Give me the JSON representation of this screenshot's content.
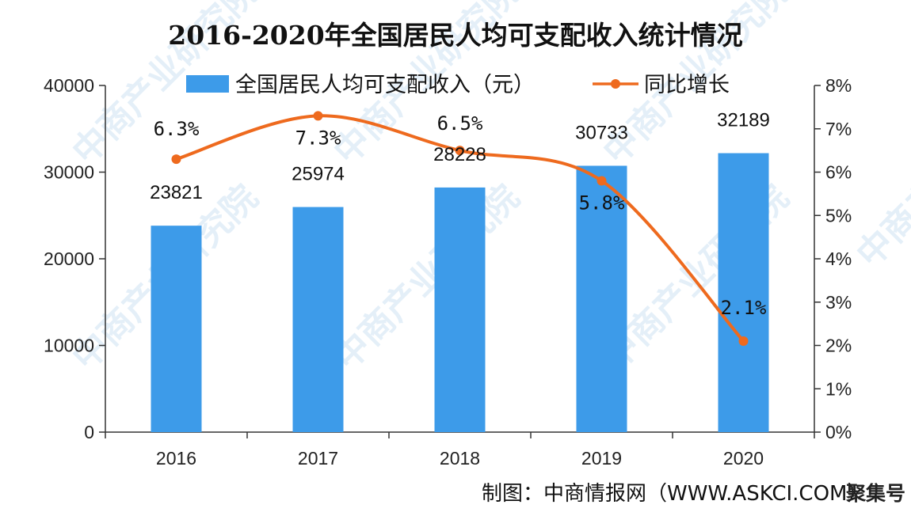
{
  "chart_data": {
    "type": "bar",
    "title": "2016-2020年全国居民人均可支配收入统计情况",
    "categories": [
      "2016",
      "2017",
      "2018",
      "2019",
      "2020"
    ],
    "series": [
      {
        "name": "全国居民人均可支配收入（元）",
        "type": "bar",
        "axis": "left",
        "values": [
          23821,
          25974,
          28228,
          30733,
          32189
        ],
        "labels": [
          "23821",
          "25974",
          "28228",
          "30733",
          "32189"
        ]
      },
      {
        "name": "同比增长",
        "type": "line",
        "axis": "right",
        "values": [
          6.3,
          7.3,
          6.5,
          5.8,
          2.1
        ],
        "labels": [
          "6.3%",
          "7.3%",
          "6.5%",
          "5.8%",
          "2.1%"
        ]
      }
    ],
    "y_left": {
      "ylim": [
        0,
        40000
      ],
      "ticks": [
        "0",
        "10000",
        "20000",
        "30000",
        "40000"
      ]
    },
    "y_right": {
      "ylim": [
        0,
        8
      ],
      "ticks": [
        "0%",
        "1%",
        "2%",
        "3%",
        "4%",
        "5%",
        "6%",
        "7%",
        "8%"
      ]
    },
    "grid": false,
    "legend_position": "top-center"
  },
  "colors": {
    "bar": "#3d9be9",
    "line": "#ee6a1e",
    "axis": "#333333",
    "watermark": "#cfe3f3"
  },
  "watermark_text": "中商产业研究院",
  "source": "制图：中商情报网（WWW.ASKCI.COM）",
  "corner_mark": "聚集号"
}
